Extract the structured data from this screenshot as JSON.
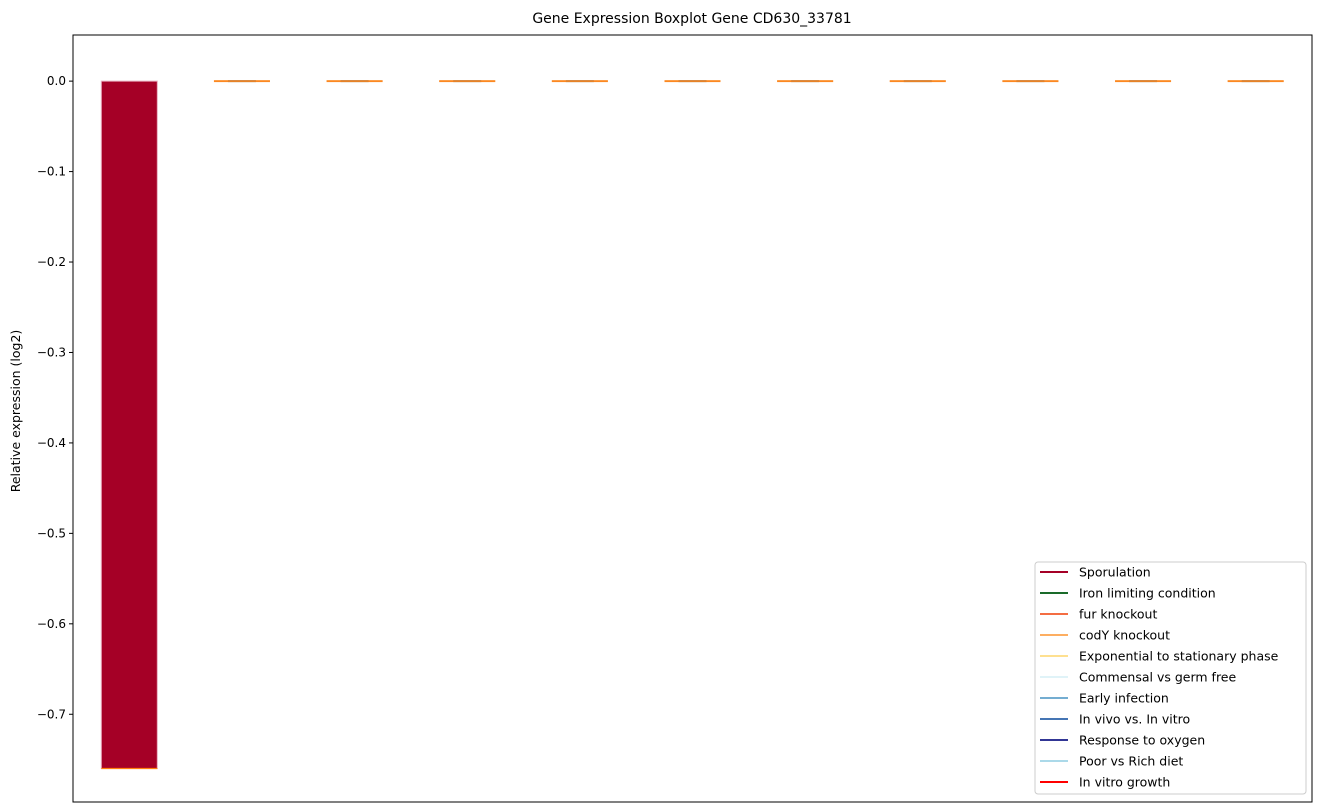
{
  "chart_data": {
    "type": "boxplot",
    "title": "Gene Expression Boxplot Gene CD630_33781",
    "xlabel": "",
    "ylabel": "Relative expression (log2)",
    "ylim": [
      -0.797,
      0.051
    ],
    "yticks": [
      0.0,
      -0.1,
      -0.2,
      -0.3,
      -0.4,
      -0.5,
      -0.6,
      -0.7
    ],
    "ytick_labels": [
      "0.0",
      "−0.1",
      "−0.2",
      "−0.3",
      "−0.4",
      "−0.5",
      "−0.6",
      "−0.7"
    ],
    "grid": false,
    "legend_position": "lower-right",
    "median_color": "#ff7f0e",
    "series": [
      {
        "name": "Sporulation",
        "color": "#a50026",
        "whisker_low": -0.76,
        "q1": -0.76,
        "median": -0.76,
        "q3": 0.0,
        "whisker_high": 0.0
      },
      {
        "name": "Iron limiting condition",
        "color": "#1a6b2a",
        "whisker_low": 0.0,
        "q1": 0.0,
        "median": 0.0,
        "q3": 0.0,
        "whisker_high": 0.0
      },
      {
        "name": "fur knockout",
        "color": "#f46d43",
        "whisker_low": 0.0,
        "q1": 0.0,
        "median": 0.0,
        "q3": 0.0,
        "whisker_high": 0.0
      },
      {
        "name": "codY knockout",
        "color": "#fdae61",
        "whisker_low": 0.0,
        "q1": 0.0,
        "median": 0.0,
        "q3": 0.0,
        "whisker_high": 0.0
      },
      {
        "name": "Exponential to stationary phase",
        "color": "#fee090",
        "whisker_low": 0.0,
        "q1": 0.0,
        "median": 0.0,
        "q3": 0.0,
        "whisker_high": 0.0
      },
      {
        "name": "Commensal vs germ free",
        "color": "#e0f3f8",
        "whisker_low": 0.0,
        "q1": 0.0,
        "median": 0.0,
        "q3": 0.0,
        "whisker_high": 0.0
      },
      {
        "name": "Early infection",
        "color": "#74add1",
        "whisker_low": 0.0,
        "q1": 0.0,
        "median": 0.0,
        "q3": 0.0,
        "whisker_high": 0.0
      },
      {
        "name": "In vivo vs. In vitro",
        "color": "#4575b4",
        "whisker_low": 0.0,
        "q1": 0.0,
        "median": 0.0,
        "q3": 0.0,
        "whisker_high": 0.0
      },
      {
        "name": "Response to oxygen",
        "color": "#313695",
        "whisker_low": 0.0,
        "q1": 0.0,
        "median": 0.0,
        "q3": 0.0,
        "whisker_high": 0.0
      },
      {
        "name": "Poor vs Rich diet",
        "color": "#abd9e9",
        "whisker_low": 0.0,
        "q1": 0.0,
        "median": 0.0,
        "q3": 0.0,
        "whisker_high": 0.0
      },
      {
        "name": "In vitro growth",
        "color": "#ff0000",
        "whisker_low": 0.0,
        "q1": 0.0,
        "median": 0.0,
        "q3": 0.0,
        "whisker_high": 0.0
      }
    ]
  }
}
